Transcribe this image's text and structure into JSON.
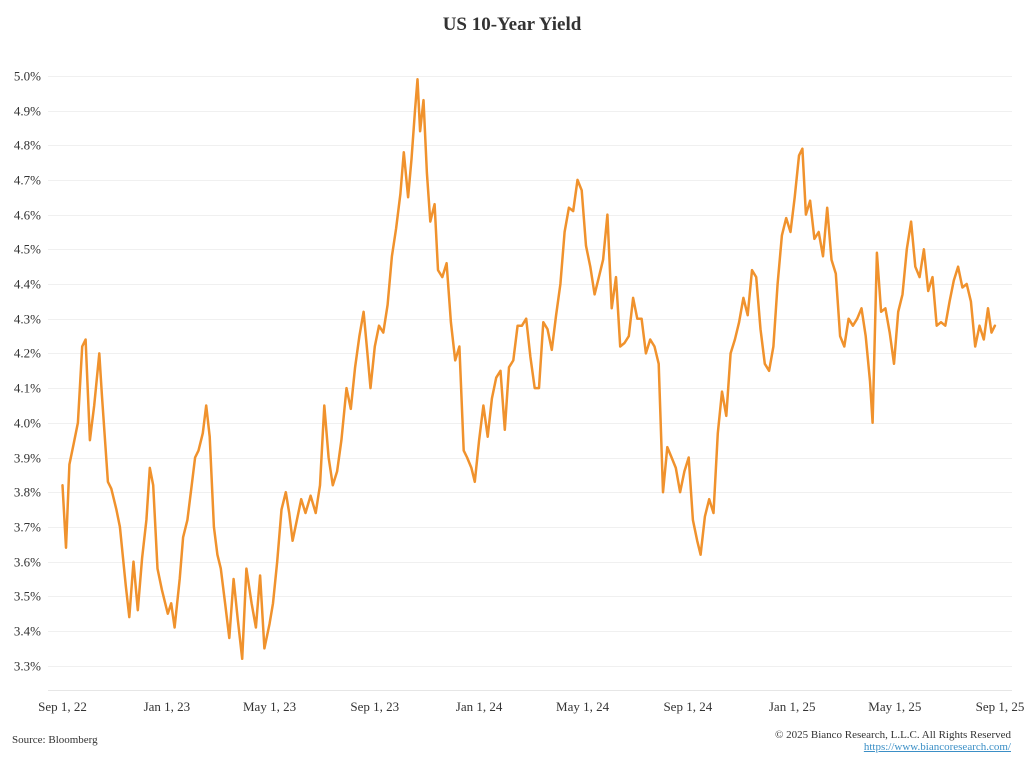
{
  "chart_data": {
    "type": "line",
    "title": "US 10-Year Yield",
    "xlabel": "",
    "ylabel": "",
    "x_range": [
      "2022-08-15",
      "2025-09-15"
    ],
    "ylim": [
      3.23,
      5.06
    ],
    "y_ticks": [
      3.3,
      3.4,
      3.5,
      3.6,
      3.7,
      3.8,
      3.9,
      4.0,
      4.1,
      4.2,
      4.3,
      4.4,
      4.5,
      4.6,
      4.7,
      4.8,
      4.9,
      5.0
    ],
    "y_tick_labels": [
      "3.3%",
      "3.4%",
      "3.5%",
      "3.6%",
      "3.7%",
      "3.8%",
      "3.9%",
      "4.0%",
      "4.1%",
      "4.2%",
      "4.3%",
      "4.4%",
      "4.5%",
      "4.6%",
      "4.7%",
      "4.8%",
      "4.9%",
      "5.0%"
    ],
    "x_ticks": [
      {
        "date": "2022-09-01",
        "label": "Sep 1, 22"
      },
      {
        "date": "2023-01-01",
        "label": "Jan 1, 23"
      },
      {
        "date": "2023-05-01",
        "label": "May 1, 23"
      },
      {
        "date": "2023-09-01",
        "label": "Sep 1, 23"
      },
      {
        "date": "2024-01-01",
        "label": "Jan 1, 24"
      },
      {
        "date": "2024-05-01",
        "label": "May 1, 24"
      },
      {
        "date": "2024-09-01",
        "label": "Sep 1, 24"
      },
      {
        "date": "2025-01-01",
        "label": "Jan 1, 25"
      },
      {
        "date": "2025-05-01",
        "label": "May 1, 25"
      },
      {
        "date": "2025-09-01",
        "label": "Sep 1, 25"
      }
    ],
    "grid": true,
    "legend": "none",
    "series": [
      {
        "color": "#f0922d",
        "points": [
          [
            "2022-09-01",
            3.82
          ],
          [
            "2022-09-05",
            3.64
          ],
          [
            "2022-09-09",
            3.88
          ],
          [
            "2022-09-14",
            3.94
          ],
          [
            "2022-09-19",
            4.0
          ],
          [
            "2022-09-24",
            4.22
          ],
          [
            "2022-09-28",
            4.24
          ],
          [
            "2022-10-03",
            3.95
          ],
          [
            "2022-10-08",
            4.05
          ],
          [
            "2022-10-14",
            4.2
          ],
          [
            "2022-10-17",
            4.08
          ],
          [
            "2022-10-24",
            3.83
          ],
          [
            "2022-10-28",
            3.81
          ],
          [
            "2022-11-03",
            3.75
          ],
          [
            "2022-11-07",
            3.7
          ],
          [
            "2022-11-14",
            3.53
          ],
          [
            "2022-11-18",
            3.44
          ],
          [
            "2022-11-23",
            3.6
          ],
          [
            "2022-11-28",
            3.46
          ],
          [
            "2022-12-03",
            3.61
          ],
          [
            "2022-12-08",
            3.72
          ],
          [
            "2022-12-12",
            3.87
          ],
          [
            "2022-12-16",
            3.82
          ],
          [
            "2022-12-21",
            3.58
          ],
          [
            "2022-12-26",
            3.52
          ],
          [
            "2023-01-02",
            3.45
          ],
          [
            "2023-01-06",
            3.48
          ],
          [
            "2023-01-10",
            3.41
          ],
          [
            "2023-01-16",
            3.55
          ],
          [
            "2023-01-20",
            3.67
          ],
          [
            "2023-01-25",
            3.72
          ],
          [
            "2023-01-30",
            3.82
          ],
          [
            "2023-02-03",
            3.9
          ],
          [
            "2023-02-07",
            3.92
          ],
          [
            "2023-02-12",
            3.97
          ],
          [
            "2023-02-16",
            4.05
          ],
          [
            "2023-02-20",
            3.96
          ],
          [
            "2023-02-25",
            3.7
          ],
          [
            "2023-03-01",
            3.62
          ],
          [
            "2023-03-05",
            3.58
          ],
          [
            "2023-03-10",
            3.48
          ],
          [
            "2023-03-15",
            3.38
          ],
          [
            "2023-03-20",
            3.55
          ],
          [
            "2023-03-25",
            3.43
          ],
          [
            "2023-03-30",
            3.32
          ],
          [
            "2023-04-04",
            3.58
          ],
          [
            "2023-04-10",
            3.48
          ],
          [
            "2023-04-15",
            3.41
          ],
          [
            "2023-04-20",
            3.56
          ],
          [
            "2023-04-25",
            3.35
          ],
          [
            "2023-05-01",
            3.42
          ],
          [
            "2023-05-05",
            3.48
          ],
          [
            "2023-05-10",
            3.6
          ],
          [
            "2023-05-15",
            3.75
          ],
          [
            "2023-05-20",
            3.8
          ],
          [
            "2023-05-24",
            3.74
          ],
          [
            "2023-05-28",
            3.66
          ],
          [
            "2023-06-02",
            3.72
          ],
          [
            "2023-06-07",
            3.78
          ],
          [
            "2023-06-12",
            3.74
          ],
          [
            "2023-06-18",
            3.79
          ],
          [
            "2023-06-24",
            3.74
          ],
          [
            "2023-06-29",
            3.82
          ],
          [
            "2023-07-04",
            4.05
          ],
          [
            "2023-07-09",
            3.9
          ],
          [
            "2023-07-14",
            3.82
          ],
          [
            "2023-07-19",
            3.86
          ],
          [
            "2023-07-24",
            3.95
          ],
          [
            "2023-07-30",
            4.1
          ],
          [
            "2023-08-04",
            4.04
          ],
          [
            "2023-08-09",
            4.16
          ],
          [
            "2023-08-14",
            4.25
          ],
          [
            "2023-08-19",
            4.32
          ],
          [
            "2023-08-23",
            4.21
          ],
          [
            "2023-08-27",
            4.1
          ],
          [
            "2023-09-01",
            4.22
          ],
          [
            "2023-09-06",
            4.28
          ],
          [
            "2023-09-11",
            4.26
          ],
          [
            "2023-09-16",
            4.34
          ],
          [
            "2023-09-21",
            4.48
          ],
          [
            "2023-09-26",
            4.56
          ],
          [
            "2023-10-01",
            4.66
          ],
          [
            "2023-10-05",
            4.78
          ],
          [
            "2023-10-10",
            4.65
          ],
          [
            "2023-10-14",
            4.76
          ],
          [
            "2023-10-18",
            4.9
          ],
          [
            "2023-10-21",
            4.99
          ],
          [
            "2023-10-24",
            4.84
          ],
          [
            "2023-10-28",
            4.93
          ],
          [
            "2023-11-01",
            4.72
          ],
          [
            "2023-11-05",
            4.58
          ],
          [
            "2023-11-10",
            4.63
          ],
          [
            "2023-11-14",
            4.44
          ],
          [
            "2023-11-19",
            4.42
          ],
          [
            "2023-11-24",
            4.46
          ],
          [
            "2023-11-29",
            4.29
          ],
          [
            "2023-12-04",
            4.18
          ],
          [
            "2023-12-09",
            4.22
          ],
          [
            "2023-12-14",
            3.92
          ],
          [
            "2023-12-18",
            3.9
          ],
          [
            "2023-12-23",
            3.87
          ],
          [
            "2023-12-27",
            3.83
          ],
          [
            "2024-01-01",
            3.95
          ],
          [
            "2024-01-06",
            4.05
          ],
          [
            "2024-01-11",
            3.96
          ],
          [
            "2024-01-16",
            4.07
          ],
          [
            "2024-01-21",
            4.13
          ],
          [
            "2024-01-26",
            4.15
          ],
          [
            "2024-01-31",
            3.98
          ],
          [
            "2024-02-05",
            4.16
          ],
          [
            "2024-02-10",
            4.18
          ],
          [
            "2024-02-15",
            4.28
          ],
          [
            "2024-02-20",
            4.28
          ],
          [
            "2024-02-25",
            4.3
          ],
          [
            "2024-03-01",
            4.19
          ],
          [
            "2024-03-06",
            4.1
          ],
          [
            "2024-03-11",
            4.1
          ],
          [
            "2024-03-16",
            4.29
          ],
          [
            "2024-03-21",
            4.27
          ],
          [
            "2024-03-26",
            4.21
          ],
          [
            "2024-03-31",
            4.31
          ],
          [
            "2024-04-05",
            4.4
          ],
          [
            "2024-04-10",
            4.55
          ],
          [
            "2024-04-15",
            4.62
          ],
          [
            "2024-04-20",
            4.61
          ],
          [
            "2024-04-25",
            4.7
          ],
          [
            "2024-04-30",
            4.67
          ],
          [
            "2024-05-05",
            4.51
          ],
          [
            "2024-05-10",
            4.45
          ],
          [
            "2024-05-15",
            4.37
          ],
          [
            "2024-05-20",
            4.42
          ],
          [
            "2024-05-25",
            4.47
          ],
          [
            "2024-05-30",
            4.6
          ],
          [
            "2024-06-04",
            4.33
          ],
          [
            "2024-06-09",
            4.42
          ],
          [
            "2024-06-14",
            4.22
          ],
          [
            "2024-06-19",
            4.23
          ],
          [
            "2024-06-24",
            4.25
          ],
          [
            "2024-06-29",
            4.36
          ],
          [
            "2024-07-04",
            4.3
          ],
          [
            "2024-07-09",
            4.3
          ],
          [
            "2024-07-14",
            4.2
          ],
          [
            "2024-07-19",
            4.24
          ],
          [
            "2024-07-24",
            4.22
          ],
          [
            "2024-07-29",
            4.17
          ],
          [
            "2024-08-03",
            3.8
          ],
          [
            "2024-08-08",
            3.93
          ],
          [
            "2024-08-13",
            3.9
          ],
          [
            "2024-08-18",
            3.87
          ],
          [
            "2024-08-23",
            3.8
          ],
          [
            "2024-08-28",
            3.86
          ],
          [
            "2024-09-02",
            3.9
          ],
          [
            "2024-09-07",
            3.72
          ],
          [
            "2024-09-12",
            3.66
          ],
          [
            "2024-09-16",
            3.62
          ],
          [
            "2024-09-21",
            3.73
          ],
          [
            "2024-09-26",
            3.78
          ],
          [
            "2024-10-01",
            3.74
          ],
          [
            "2024-10-06",
            3.97
          ],
          [
            "2024-10-11",
            4.09
          ],
          [
            "2024-10-16",
            4.02
          ],
          [
            "2024-10-21",
            4.2
          ],
          [
            "2024-10-26",
            4.24
          ],
          [
            "2024-10-31",
            4.29
          ],
          [
            "2024-11-05",
            4.36
          ],
          [
            "2024-11-10",
            4.31
          ],
          [
            "2024-11-15",
            4.44
          ],
          [
            "2024-11-20",
            4.42
          ],
          [
            "2024-11-25",
            4.27
          ],
          [
            "2024-11-30",
            4.17
          ],
          [
            "2024-12-05",
            4.15
          ],
          [
            "2024-12-10",
            4.22
          ],
          [
            "2024-12-15",
            4.4
          ],
          [
            "2024-12-20",
            4.54
          ],
          [
            "2024-12-25",
            4.59
          ],
          [
            "2024-12-30",
            4.55
          ],
          [
            "2025-01-04",
            4.65
          ],
          [
            "2025-01-09",
            4.77
          ],
          [
            "2025-01-13",
            4.79
          ],
          [
            "2025-01-17",
            4.6
          ],
          [
            "2025-01-22",
            4.64
          ],
          [
            "2025-01-27",
            4.53
          ],
          [
            "2025-02-01",
            4.55
          ],
          [
            "2025-02-06",
            4.48
          ],
          [
            "2025-02-11",
            4.62
          ],
          [
            "2025-02-16",
            4.47
          ],
          [
            "2025-02-21",
            4.43
          ],
          [
            "2025-02-26",
            4.25
          ],
          [
            "2025-03-03",
            4.22
          ],
          [
            "2025-03-08",
            4.3
          ],
          [
            "2025-03-13",
            4.28
          ],
          [
            "2025-03-18",
            4.3
          ],
          [
            "2025-03-23",
            4.33
          ],
          [
            "2025-03-28",
            4.25
          ],
          [
            "2025-04-02",
            4.12
          ],
          [
            "2025-04-05",
            4.0
          ],
          [
            "2025-04-10",
            4.49
          ],
          [
            "2025-04-15",
            4.32
          ],
          [
            "2025-04-20",
            4.33
          ],
          [
            "2025-04-25",
            4.26
          ],
          [
            "2025-04-30",
            4.17
          ],
          [
            "2025-05-05",
            4.32
          ],
          [
            "2025-05-10",
            4.37
          ],
          [
            "2025-05-15",
            4.5
          ],
          [
            "2025-05-20",
            4.58
          ],
          [
            "2025-05-25",
            4.45
          ],
          [
            "2025-05-30",
            4.42
          ],
          [
            "2025-06-04",
            4.5
          ],
          [
            "2025-06-09",
            4.38
          ],
          [
            "2025-06-14",
            4.42
          ],
          [
            "2025-06-19",
            4.28
          ],
          [
            "2025-06-24",
            4.29
          ],
          [
            "2025-06-29",
            4.28
          ],
          [
            "2025-07-04",
            4.35
          ],
          [
            "2025-07-09",
            4.41
          ],
          [
            "2025-07-14",
            4.45
          ],
          [
            "2025-07-19",
            4.39
          ],
          [
            "2025-07-24",
            4.4
          ],
          [
            "2025-07-29",
            4.35
          ],
          [
            "2025-08-03",
            4.22
          ],
          [
            "2025-08-08",
            4.28
          ],
          [
            "2025-08-13",
            4.24
          ],
          [
            "2025-08-18",
            4.33
          ],
          [
            "2025-08-22",
            4.26
          ],
          [
            "2025-08-26",
            4.28
          ]
        ]
      }
    ]
  },
  "footer": {
    "source": "Source: Bloomberg",
    "copyright": "© 2025 Bianco Research, L.L.C. All Rights Reserved",
    "url": "https://www.biancoresearch.com/"
  }
}
